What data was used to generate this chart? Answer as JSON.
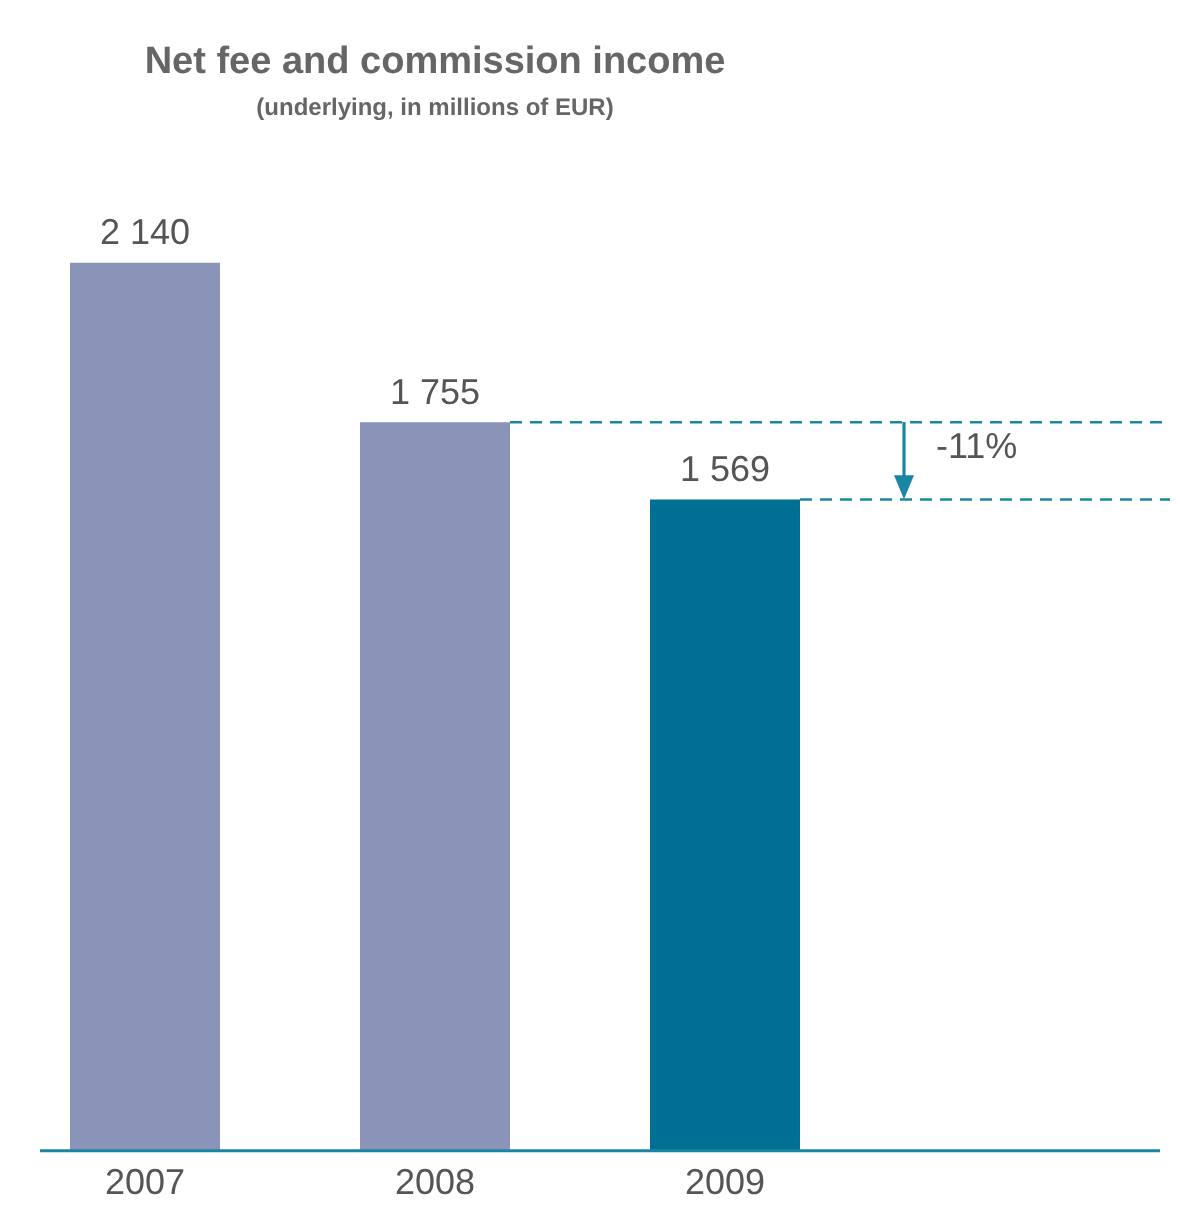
{
  "chart_data": {
    "type": "bar",
    "title": "Net fee and commission income",
    "subtitle": "(underlying, in millions of EUR)",
    "categories": [
      "2007",
      "2008",
      "2009"
    ],
    "values": [
      2140,
      1755,
      1569
    ],
    "colors": [
      "#8a94b8",
      "#8a94b8",
      "#006f94"
    ],
    "value_labels": [
      "2 140",
      "1 755",
      "1 569"
    ],
    "ref_lines": [
      {
        "axis": "y",
        "value": 1755,
        "label": null,
        "color": "#1a86a3",
        "line_style": "dashed"
      },
      {
        "axis": "y",
        "value": 1569,
        "label": null,
        "color": "#1a86a3",
        "line_style": "dashed"
      }
    ],
    "annotations": [
      "-11%"
    ],
    "grid": false,
    "legend": false,
    "tick_labels": "x"
  }
}
